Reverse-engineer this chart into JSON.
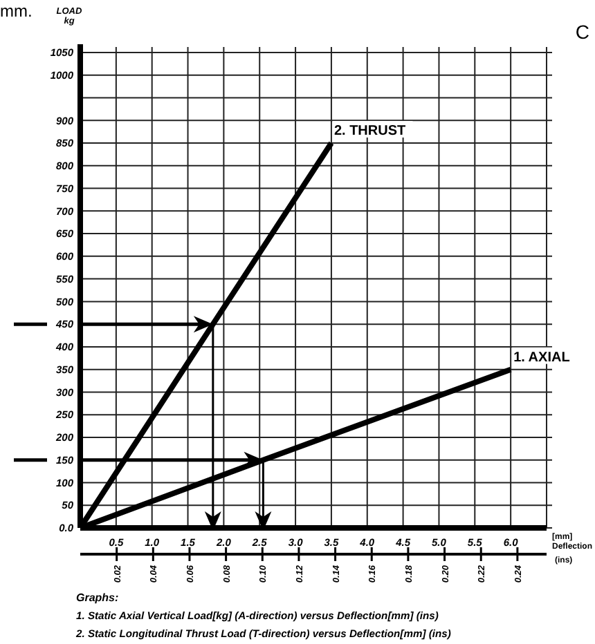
{
  "chart_data": {
    "type": "line",
    "ylabel": "LOAD\nkg",
    "xlabel": "[mm]\nDeflection",
    "x2label": "(ins)",
    "series": [
      {
        "name": "2. THRUST",
        "color": "#000000",
        "x": [
          0,
          1.85,
          3.5
        ],
        "values": [
          0,
          450,
          850
        ]
      },
      {
        "name": "1. AXIAL",
        "color": "#000000",
        "x": [
          0,
          2.55,
          6.0
        ],
        "values": [
          0,
          150,
          350
        ]
      }
    ],
    "xlim": [
      0,
      6.5
    ],
    "xticks": [
      {
        "value": 0,
        "label": null
      },
      0.5,
      {
        "value": 1,
        "label": "1.0"
      },
      1.5,
      {
        "value": 2,
        "label": "2.0"
      },
      2.5,
      {
        "value": 3,
        "label": "3.0"
      },
      3.5,
      {
        "value": 4,
        "label": "4.0"
      },
      4.5,
      {
        "value": 5,
        "label": "5.0"
      },
      5.5,
      {
        "value": 6,
        "label": "6.0"
      },
      {
        "value": 6.5,
        "label": null
      }
    ],
    "ylim": [
      0,
      1050
    ],
    "yticks": [
      {
        "value": 0,
        "label": "0.0"
      },
      50,
      100,
      150,
      200,
      250,
      300,
      350,
      400,
      450,
      500,
      550,
      600,
      650,
      700,
      750,
      800,
      850,
      900,
      {
        "value": 950,
        "label": null
      },
      1000,
      1050
    ],
    "x2lim": [
      0,
      0.256
    ],
    "x2ticks": [
      0.02,
      0.04,
      0.06,
      0.08,
      {
        "value": 0.1,
        "label": "0.10"
      },
      0.12,
      0.14,
      0.16,
      0.18,
      {
        "value": 0.2,
        "label": "0.20"
      },
      0.22,
      0.24
    ],
    "grid": true,
    "legend": false,
    "annotations": [
      "mm.",
      "C",
      "Graphs:",
      "1. Static Axial Vertical Load[kg] (A-direction) versus Deflection[mm] (ins)",
      "2. Static Longitudinal Thrust Load (T-direction) versus Deflection[mm] (ins)"
    ]
  }
}
